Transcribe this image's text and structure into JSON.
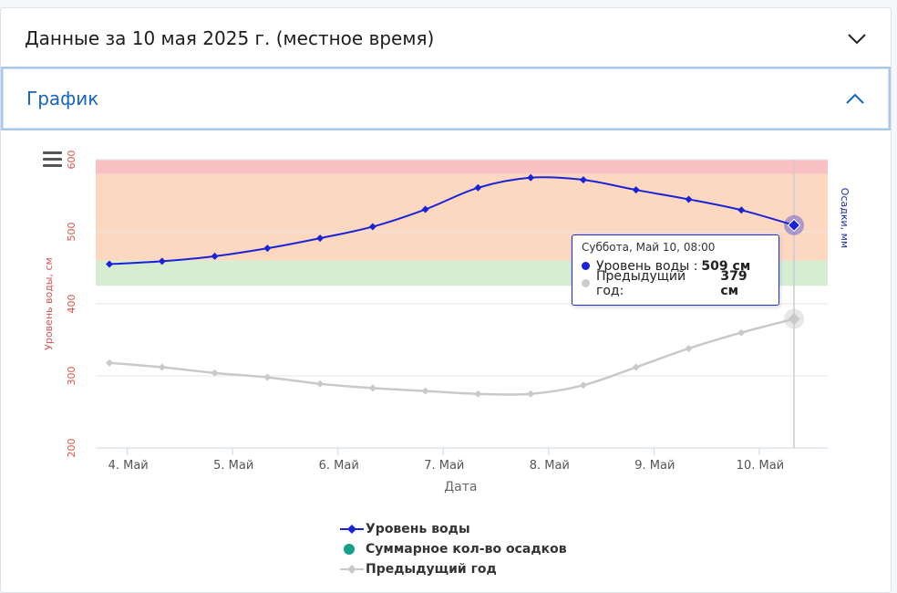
{
  "accordion": {
    "data_title": "Данные за 10 мая 2025 г. (местное время)",
    "chart_title": "График"
  },
  "tooltip": {
    "header": "Суббота, Май 10, 08:00",
    "rows": [
      {
        "label": "Уровень воды :",
        "value": "509 см",
        "color": "#1a23d6"
      },
      {
        "label": "Предыдущий год:",
        "value": "379 см",
        "color": "#cccccc"
      }
    ]
  },
  "legend": [
    {
      "label": "Уровень воды",
      "symbol": "line-diamond",
      "color": "#1a23d6"
    },
    {
      "label": "Суммарное кол-во осадков",
      "symbol": "dot",
      "color": "#14a08a"
    },
    {
      "label": "Предыдущий год",
      "symbol": "line-diamond",
      "color": "#c9c9c9"
    }
  ],
  "chart_data": {
    "type": "line",
    "xlabel": "Дата",
    "ylabel": "Уровень воды, см",
    "y2label": "Осадки, мм",
    "ylim": [
      200,
      600
    ],
    "yticks": [
      200,
      300,
      400,
      500,
      600
    ],
    "xlim": [
      3.7,
      10.65
    ],
    "xticks": [
      {
        "x": 4,
        "label": "4. Май"
      },
      {
        "x": 5,
        "label": "5. Май"
      },
      {
        "x": 6,
        "label": "6. Май"
      },
      {
        "x": 7,
        "label": "7. Май"
      },
      {
        "x": 8,
        "label": "8. Май"
      },
      {
        "x": 9,
        "label": "9. Май"
      },
      {
        "x": 10,
        "label": "10. Май"
      }
    ],
    "bands": [
      {
        "from": 580,
        "to": 600,
        "color": "#f9c1c3"
      },
      {
        "from": 460,
        "to": 580,
        "color": "#fcd8c0"
      },
      {
        "from": 425,
        "to": 460,
        "color": "#d6edd2"
      }
    ],
    "crosshair_x": 10.33,
    "series": [
      {
        "name": "Уровень воды",
        "color": "#1a23d6",
        "points": [
          [
            3.83,
            455
          ],
          [
            4.33,
            459
          ],
          [
            4.83,
            466
          ],
          [
            5.33,
            477
          ],
          [
            5.83,
            491
          ],
          [
            6.33,
            507
          ],
          [
            6.83,
            531
          ],
          [
            7.33,
            561
          ],
          [
            7.83,
            575
          ],
          [
            8.33,
            572
          ],
          [
            8.83,
            558
          ],
          [
            9.33,
            545
          ],
          [
            9.83,
            530
          ],
          [
            10.33,
            509
          ]
        ]
      },
      {
        "name": "Предыдущий год",
        "color": "#c9c9c9",
        "points": [
          [
            3.83,
            318
          ],
          [
            4.33,
            312
          ],
          [
            4.83,
            304
          ],
          [
            5.33,
            298
          ],
          [
            5.83,
            289
          ],
          [
            6.33,
            283
          ],
          [
            6.83,
            279
          ],
          [
            7.33,
            275
          ],
          [
            7.83,
            275
          ],
          [
            8.33,
            287
          ],
          [
            8.83,
            312
          ],
          [
            9.33,
            338
          ],
          [
            9.83,
            360
          ],
          [
            10.33,
            379
          ]
        ]
      }
    ]
  }
}
